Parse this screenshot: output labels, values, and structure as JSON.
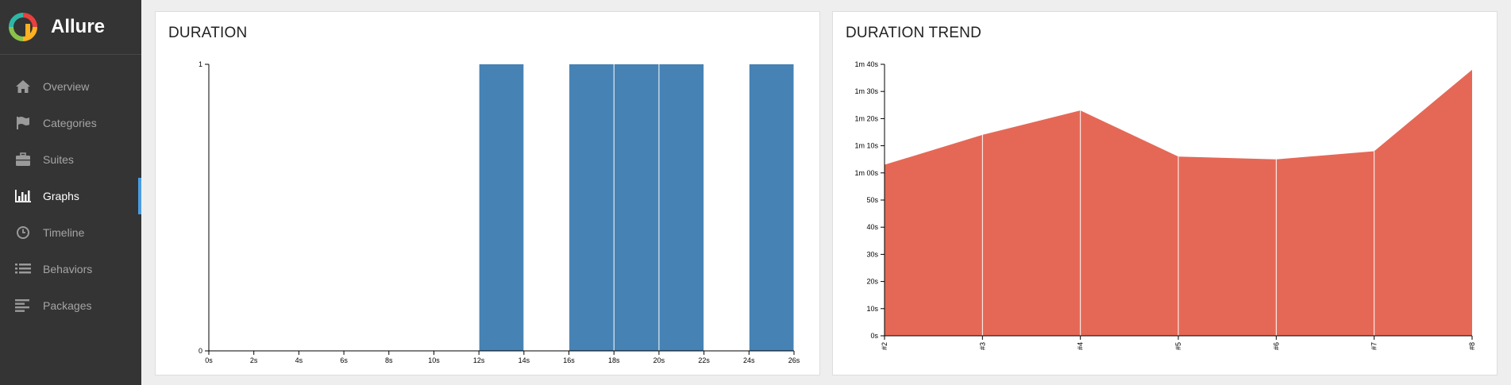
{
  "brand": {
    "name": "Allure"
  },
  "sidebar": {
    "items": [
      {
        "label": "Overview",
        "icon": "home-icon",
        "active": false
      },
      {
        "label": "Categories",
        "icon": "flag-icon",
        "active": false
      },
      {
        "label": "Suites",
        "icon": "briefcase-icon",
        "active": false
      },
      {
        "label": "Graphs",
        "icon": "bar-chart-icon",
        "active": true
      },
      {
        "label": "Timeline",
        "icon": "clock-icon",
        "active": false
      },
      {
        "label": "Behaviors",
        "icon": "list-icon",
        "active": false
      },
      {
        "label": "Packages",
        "icon": "align-left-icon",
        "active": false
      }
    ],
    "accent": "#4b9ce0"
  },
  "panels": {
    "duration_title": "DURATION",
    "trend_title": "DURATION TREND"
  },
  "chart_data": [
    {
      "type": "bar",
      "title": "DURATION",
      "color": "#4682b4",
      "x_ticks": [
        "0s",
        "2s",
        "4s",
        "6s",
        "8s",
        "10s",
        "12s",
        "14s",
        "16s",
        "18s",
        "20s",
        "22s",
        "24s",
        "26s"
      ],
      "y_ticks": [
        "0",
        "1"
      ],
      "xlim": [
        0,
        26
      ],
      "ylim": [
        0,
        1
      ],
      "bins": [
        {
          "start": 12,
          "end": 14,
          "value": 1
        },
        {
          "start": 16,
          "end": 18,
          "value": 1
        },
        {
          "start": 18,
          "end": 20,
          "value": 1
        },
        {
          "start": 20,
          "end": 22,
          "value": 1
        },
        {
          "start": 24,
          "end": 26,
          "value": 1
        }
      ]
    },
    {
      "type": "area",
      "title": "DURATION TREND",
      "color": "#e56856",
      "categories": [
        "#2",
        "#3",
        "#4",
        "#5",
        "#6",
        "#7",
        "#8"
      ],
      "values_seconds": [
        63,
        74,
        83,
        66,
        65,
        68,
        98
      ],
      "ylim": [
        0,
        100
      ],
      "y_ticks": [
        "0s",
        "10s",
        "20s",
        "30s",
        "40s",
        "50s",
        "1m 00s",
        "1m 10s",
        "1m 20s",
        "1m 30s",
        "1m 40s"
      ]
    }
  ]
}
